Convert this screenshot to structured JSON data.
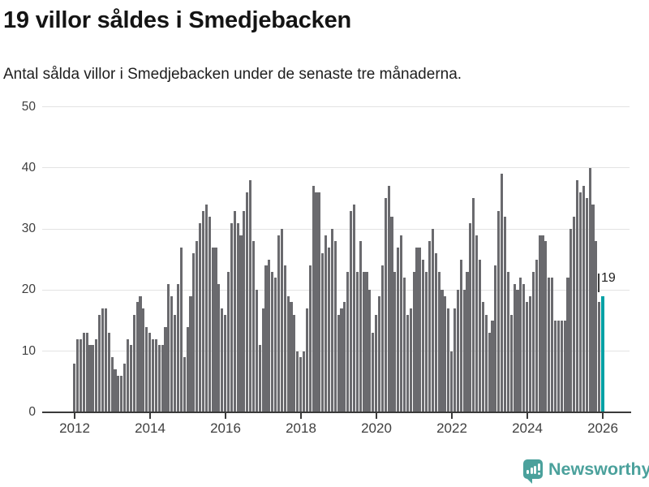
{
  "header": {
    "title": "19 villor såldes i Smedjebacken",
    "subtitle": "Antal sålda villor i Smedjebacken under de senaste tre månaderna."
  },
  "footer": {
    "brand": "Newsworthy",
    "logo_icon": "bar-chart-speech-bubble-icon",
    "brand_color": "#4BA19C"
  },
  "colors": {
    "bar": "#6A6A6E",
    "highlight": "#00A1A5",
    "gridline": "#e3e3e3",
    "axis": "#3a3a3a",
    "tick_text": "#3f3f3f"
  },
  "chart_data": {
    "type": "bar",
    "title": "19 villor såldes i Smedjebacken",
    "subtitle": "Antal sålda villor i Smedjebacken under de senaste tre månaderna.",
    "xlabel": "",
    "ylabel": "",
    "x_start": "2012-01",
    "x_frequency": "monthly",
    "x_tick_labels": [
      "2012",
      "2014",
      "2016",
      "2018",
      "2020",
      "2022",
      "2024",
      "2026"
    ],
    "y_ticks": [
      "0",
      "10",
      "20",
      "30",
      "40",
      "50"
    ],
    "ylim": [
      0,
      50
    ],
    "grid": "horizontal",
    "legend": "none",
    "highlight_index": 168,
    "annotation": {
      "text": "19",
      "attached_to": "last-bar"
    },
    "values": [
      8,
      12,
      12,
      13,
      13,
      11,
      11,
      12,
      16,
      17,
      17,
      13,
      9,
      7,
      6,
      6,
      8,
      12,
      11,
      16,
      18,
      19,
      17,
      14,
      13,
      12,
      12,
      11,
      11,
      14,
      21,
      19,
      16,
      21,
      27,
      9,
      14,
      19,
      26,
      28,
      31,
      33,
      34,
      32,
      27,
      27,
      21,
      17,
      16,
      23,
      31,
      33,
      31,
      29,
      33,
      36,
      38,
      28,
      20,
      11,
      17,
      24,
      25,
      23,
      22,
      29,
      30,
      24,
      19,
      18,
      16,
      10,
      9,
      10,
      17,
      24,
      37,
      36,
      36,
      26,
      29,
      27,
      30,
      28,
      16,
      17,
      18,
      23,
      33,
      34,
      23,
      28,
      23,
      23,
      20,
      13,
      16,
      19,
      24,
      35,
      37,
      32,
      23,
      27,
      29,
      22,
      16,
      17,
      23,
      27,
      27,
      25,
      23,
      28,
      30,
      26,
      23,
      20,
      19,
      17,
      10,
      17,
      20,
      25,
      20,
      23,
      31,
      35,
      29,
      25,
      18,
      16,
      13,
      15,
      24,
      33,
      39,
      32,
      23,
      16,
      21,
      20,
      22,
      21,
      18,
      19,
      23,
      25,
      29,
      29,
      28,
      22,
      22,
      15,
      15,
      15,
      15,
      22,
      30,
      32,
      38,
      36,
      37,
      35,
      40,
      34,
      28,
      18,
      19
    ]
  }
}
